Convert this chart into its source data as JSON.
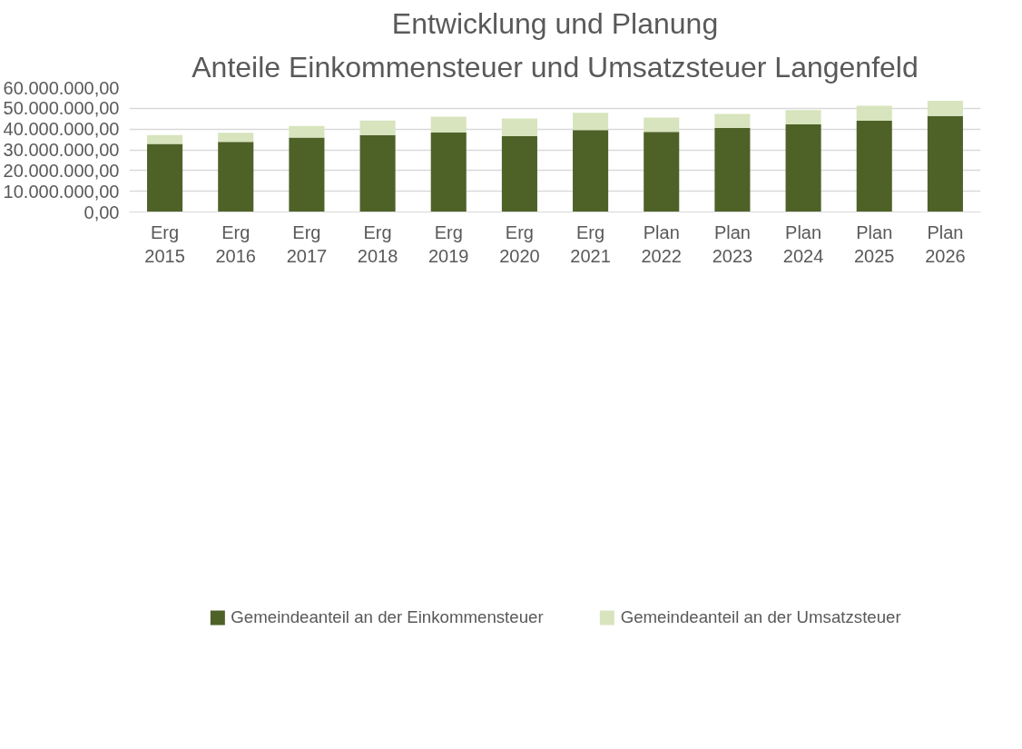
{
  "chart_data": {
    "type": "bar",
    "title": "Entwicklung und Planung",
    "subtitle": "Anteile Einkommensteuer und Umsatzsteuer Langenfeld",
    "categories": [
      "Erg 2015",
      "Erg 2016",
      "Erg 2017",
      "Erg 2018",
      "Erg 2019",
      "Erg 2020",
      "Erg 2021",
      "Plan 2022",
      "Plan 2023",
      "Plan 2024",
      "Plan 2025",
      "Plan 2026"
    ],
    "stacked": true,
    "series": [
      {
        "name": "Gemeindeanteil an der Einkommensteuer",
        "color": "#4e6228",
        "values": [
          32800000,
          33800000,
          35900000,
          37100000,
          38300000,
          36600000,
          39500000,
          38600000,
          40500000,
          42300000,
          44000000,
          46300000
        ]
      },
      {
        "name": "Gemeindeanteil an der Umsatzsteuer",
        "color": "#d7e4bd",
        "values": [
          4300000,
          4400000,
          5600000,
          7000000,
          7700000,
          8500000,
          8400000,
          6900000,
          6800000,
          6900000,
          7200000,
          7400000
        ]
      }
    ],
    "ylim": [
      0,
      60000000
    ],
    "yticks": [
      {
        "value": 0,
        "label": "0,00"
      },
      {
        "value": 10000000,
        "label": "10.000.000,00"
      },
      {
        "value": 20000000,
        "label": "20.000.000,00"
      },
      {
        "value": 30000000,
        "label": "30.000.000,00"
      },
      {
        "value": 40000000,
        "label": "40.000.000,00"
      },
      {
        "value": 50000000,
        "label": "50.000.000,00"
      },
      {
        "value": 60000000,
        "label": "60.000.000,00"
      }
    ],
    "grid": "y",
    "legend": "bottom"
  }
}
